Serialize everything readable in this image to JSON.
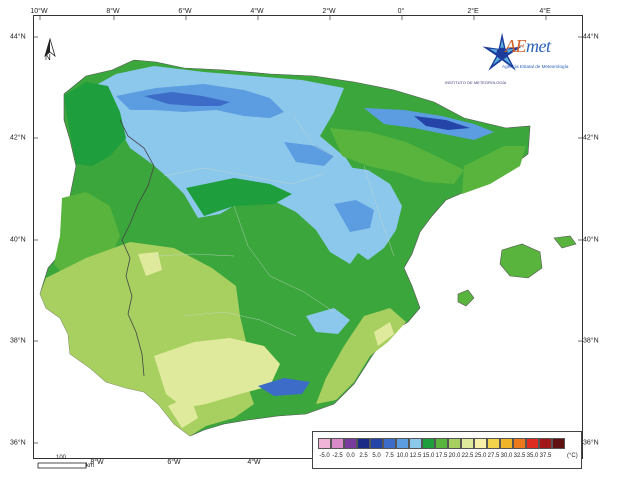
{
  "map": {
    "lon_labels": [
      "10°W",
      "8°W",
      "6°W",
      "4°W",
      "2°W",
      "0°",
      "2°E",
      "4°E"
    ],
    "lat_labels": [
      "44°N",
      "42°N",
      "40°N",
      "38°N",
      "36°N"
    ],
    "north_label": "N",
    "scale": {
      "value": "100",
      "unit": "km"
    },
    "logos": {
      "inm_text": "INSTITUTO DE METEOROLOGÍA",
      "aemet_word_a": "AE",
      "aemet_word_b": "met",
      "aemet_sub": "Agencia Estatal de Meteorología"
    },
    "legend": {
      "unit": "(°C)",
      "bins": [
        {
          "label": "-5.0",
          "color": "#f0b4d8"
        },
        {
          "label": "-2.5",
          "color": "#d98ac8"
        },
        {
          "label": "0.0",
          "color": "#7a3c9c"
        },
        {
          "label": "2.5",
          "color": "#1c2c86"
        },
        {
          "label": "5.0",
          "color": "#2444a8"
        },
        {
          "label": "7.5",
          "color": "#3c6cc8"
        },
        {
          "label": "10.0",
          "color": "#5c9ce0"
        },
        {
          "label": "12.5",
          "color": "#8cc8ec"
        },
        {
          "label": "15.0",
          "color": "#1e9e3c"
        },
        {
          "label": "17.5",
          "color": "#58b43c"
        },
        {
          "label": "20.0",
          "color": "#a8d060"
        },
        {
          "label": "22.5",
          "color": "#e0ea9c"
        },
        {
          "label": "25.0",
          "color": "#f6f0a8"
        },
        {
          "label": "27.5",
          "color": "#f2d44c"
        },
        {
          "label": "30.0",
          "color": "#f0b428"
        },
        {
          "label": "32.5",
          "color": "#ec7a1c"
        },
        {
          "label": "35.0",
          "color": "#de2c20"
        },
        {
          "label": "37.5",
          "color": "#a01818"
        },
        {
          "label": "",
          "color": "#601010"
        }
      ]
    }
  }
}
